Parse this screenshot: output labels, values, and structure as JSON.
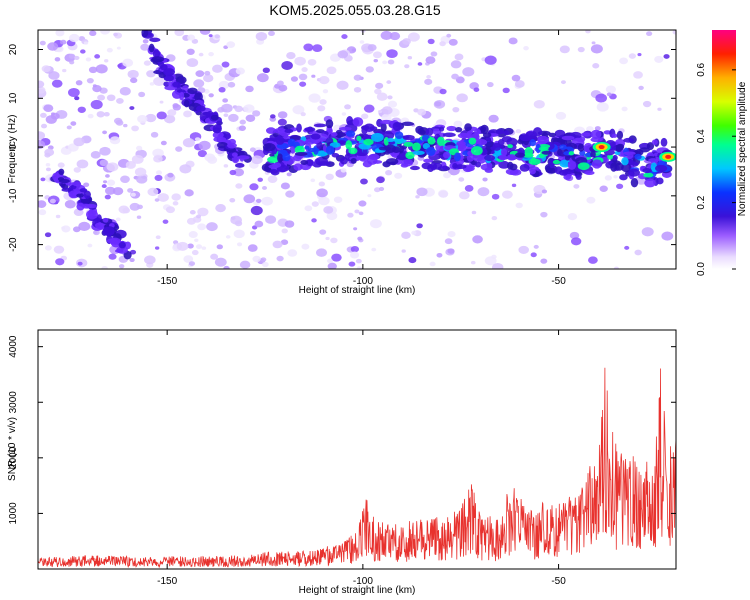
{
  "figure_title": "KOM5.2025.055.03.28.G15",
  "chart_data": [
    {
      "type": "heatmap",
      "xlabel": "Height of straight line (km)",
      "ylabel": "Frequency (Hz)",
      "xlim": [
        -183,
        -20
      ],
      "ylim": [
        -25,
        24
      ],
      "xticks": [
        -150,
        -100,
        -50
      ],
      "yticks": [
        -20,
        -10,
        0,
        10,
        20
      ],
      "colorbar": {
        "label": "Normalized spectral amplitude",
        "range": [
          0,
          0.72
        ],
        "ticks": [
          0.0,
          0.2,
          0.4,
          0.6
        ],
        "tick_labels": [
          "0.0",
          "0.2",
          "0.4",
          "0.6"
        ]
      },
      "features": [
        {
          "name": "track_left_upper",
          "x": [
            -155,
            -152,
            -149,
            -145,
            -141,
            -137,
            -133,
            -130
          ],
          "y": [
            23,
            17,
            14,
            11,
            8,
            3,
            -1,
            -3
          ]
        },
        {
          "name": "track_left_lower",
          "x": [
            -178,
            -173,
            -169,
            -165,
            -160
          ],
          "y": [
            -6,
            -9,
            -13,
            -17,
            -22
          ]
        },
        {
          "name": "main_band",
          "x": [
            -125,
            -115,
            -105,
            -95,
            -85,
            -75,
            -65,
            -55,
            -45,
            -38,
            -32,
            -27,
            -22
          ],
          "y": [
            -1,
            0,
            1,
            1,
            0,
            0,
            -1,
            -1,
            -2,
            -1,
            -2,
            -5,
            -2
          ]
        },
        {
          "name": "hot_spots",
          "x": [
            -39,
            -22
          ],
          "y": [
            0,
            -2
          ]
        }
      ]
    },
    {
      "type": "line",
      "xlabel": "Height of straight line (km)",
      "ylabel": "SNR (10 * v/v)",
      "xlim": [
        -183,
        -20
      ],
      "ylim": [
        0,
        4300
      ],
      "xticks": [
        -150,
        -100,
        -50
      ],
      "yticks": [
        1000,
        2000,
        3000,
        4000
      ],
      "series": [
        {
          "x": [
            -183,
            -170,
            -160,
            -150,
            -140,
            -130,
            -125,
            -120,
            -115,
            -110,
            -105,
            -101,
            -100,
            -97,
            -93,
            -90,
            -85,
            -80,
            -75,
            -72,
            -70,
            -65,
            -62,
            -58,
            -55,
            -50,
            -45,
            -42,
            -40,
            -38,
            -37,
            -35,
            -33,
            -30,
            -28,
            -26,
            -24,
            -23,
            -22,
            -21,
            -20
          ],
          "y": [
            200,
            250,
            230,
            230,
            230,
            250,
            300,
            320,
            350,
            400,
            500,
            700,
            1450,
            900,
            800,
            850,
            900,
            950,
            1100,
            1600,
            1000,
            900,
            1700,
            1000,
            1200,
            1200,
            1400,
            1900,
            2000,
            4200,
            2800,
            2200,
            2600,
            1900,
            2000,
            1800,
            3900,
            3500,
            800,
            3300,
            2400
          ]
        }
      ]
    }
  ]
}
